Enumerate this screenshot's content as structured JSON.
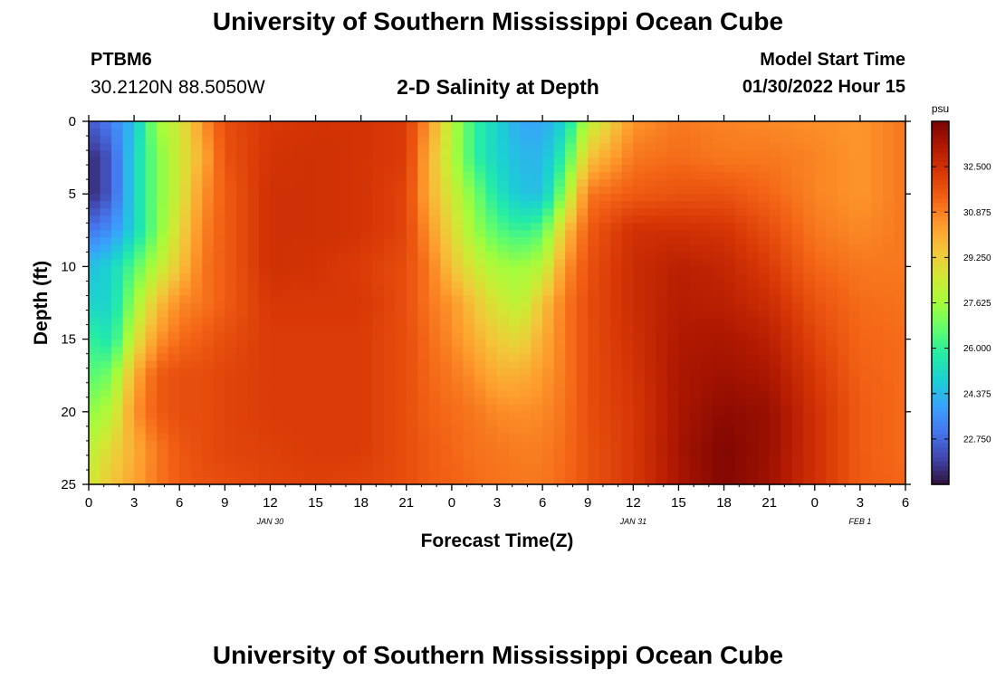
{
  "page": {
    "title_top": "University of Southern Mississippi Ocean Cube",
    "title_bottom": "University of Southern Mississippi Ocean Cube",
    "station_id": "PTBM6",
    "station_coords": "30.2120N  88.5050W",
    "subtitle": "2-D Salinity at Depth",
    "model_start_label": "Model Start Time",
    "model_start_value": "01/30/2022 Hour 15"
  },
  "chart_data": {
    "type": "heatmap",
    "title": "2-D Salinity at Depth",
    "xlabel": "Forecast Time(Z)",
    "ylabel": "Depth (ft)",
    "x_range_hours": [
      0,
      54
    ],
    "y_range_ft": [
      0,
      25
    ],
    "y_inverted": true,
    "x_tick_labels": [
      "0",
      "3",
      "6",
      "9",
      "12",
      "15",
      "18",
      "21",
      "0",
      "3",
      "6",
      "9",
      "12",
      "15",
      "18",
      "21",
      "0",
      "3",
      "6"
    ],
    "y_tick_labels": [
      "0",
      "5",
      "10",
      "15",
      "20",
      "25"
    ],
    "date_labels": [
      {
        "label": "JAN 30",
        "hour": 12
      },
      {
        "label": "JAN 31",
        "hour": 36
      },
      {
        "label": "FEB 1",
        "hour": 51
      }
    ],
    "colorbar": {
      "unit": "psu",
      "min": 21.125,
      "max": 34.125,
      "tick_labels": [
        "32.500",
        "30.875",
        "29.250",
        "27.625",
        "26.000",
        "24.375",
        "22.750"
      ],
      "tick_values": [
        32.5,
        30.875,
        29.25,
        27.625,
        26.0,
        24.375,
        22.75
      ],
      "colormap": [
        "#30123b",
        "#4145ab",
        "#4675ed",
        "#39a2fc",
        "#1bcfd4",
        "#24eca6",
        "#61fc6c",
        "#a4fc3b",
        "#d1e834",
        "#f3c63a",
        "#fe9b2d",
        "#f36315",
        "#d93806",
        "#b11901",
        "#7a0402"
      ]
    },
    "time_hours": [
      0,
      1.5,
      3,
      4.5,
      6,
      7.5,
      9,
      12,
      15,
      18,
      21,
      22.5,
      24,
      25.5,
      27,
      28.5,
      30,
      31.5,
      33,
      36,
      39,
      42,
      45,
      48,
      51,
      54
    ],
    "depth_ft": [
      0,
      2.5,
      5,
      7.5,
      10,
      12.5,
      15,
      17.5,
      20,
      22.5,
      25
    ],
    "salinity_psu": [
      [
        22.5,
        23.2,
        24.5,
        27.5,
        28.5,
        30.5,
        31.8,
        32.3,
        32.4,
        32.4,
        32.2,
        30.5,
        28.0,
        26.0,
        25.0,
        24.0,
        24.0,
        25.0,
        28.0,
        30.5,
        31.0,
        30.8,
        30.7,
        30.6,
        30.5,
        31.0
      ],
      [
        21.5,
        22.5,
        25.0,
        27.0,
        28.5,
        30.0,
        31.7,
        32.4,
        32.5,
        32.4,
        32.2,
        30.0,
        28.0,
        26.0,
        25.0,
        24.4,
        24.3,
        26.0,
        29.5,
        31.0,
        31.2,
        31.0,
        31.0,
        30.8,
        30.5,
        31.0
      ],
      [
        21.5,
        22.5,
        25.0,
        27.0,
        28.5,
        30.5,
        31.5,
        32.5,
        32.5,
        32.4,
        32.0,
        30.0,
        28.5,
        27.0,
        25.5,
        24.6,
        24.5,
        27.5,
        31.0,
        31.5,
        31.7,
        31.7,
        31.3,
        30.8,
        30.5,
        31.0
      ],
      [
        23.0,
        23.5,
        25.0,
        27.0,
        29.0,
        30.8,
        31.5,
        32.5,
        32.5,
        32.4,
        32.0,
        30.5,
        29.0,
        27.5,
        26.5,
        26.0,
        26.5,
        29.5,
        31.5,
        32.5,
        32.5,
        32.4,
        31.8,
        31.0,
        30.7,
        31.0
      ],
      [
        24.5,
        25.0,
        26.5,
        28.0,
        29.5,
        31.0,
        31.5,
        32.5,
        32.4,
        32.2,
        31.8,
        31.0,
        29.5,
        28.5,
        27.7,
        27.5,
        28.0,
        30.5,
        31.7,
        32.6,
        33.0,
        32.8,
        32.2,
        31.3,
        31.0,
        31.0
      ],
      [
        25.0,
        25.0,
        27.5,
        29.5,
        30.7,
        31.0,
        31.5,
        32.3,
        32.3,
        32.3,
        31.8,
        31.0,
        30.5,
        29.5,
        28.6,
        28.0,
        29.5,
        31.0,
        31.8,
        32.6,
        33.1,
        33.0,
        32.6,
        31.7,
        31.2,
        31.1
      ],
      [
        26.0,
        25.5,
        28.5,
        30.5,
        31.2,
        31.5,
        31.8,
        32.2,
        32.2,
        32.2,
        31.8,
        31.2,
        30.7,
        30.0,
        29.3,
        29.0,
        30.0,
        31.0,
        31.8,
        32.5,
        33.2,
        33.3,
        33.0,
        32.0,
        31.3,
        31.2
      ],
      [
        26.5,
        27.0,
        30.0,
        31.5,
        31.8,
        31.8,
        32.0,
        32.2,
        32.2,
        32.2,
        31.8,
        31.3,
        31.0,
        30.6,
        30.0,
        30.0,
        30.4,
        31.0,
        31.8,
        32.4,
        33.3,
        33.5,
        33.3,
        32.3,
        31.4,
        31.2
      ],
      [
        27.3,
        28.0,
        30.5,
        31.5,
        31.8,
        31.8,
        32.0,
        32.2,
        32.2,
        32.2,
        31.8,
        31.4,
        31.2,
        31.0,
        30.7,
        30.6,
        30.7,
        31.1,
        31.8,
        32.3,
        33.3,
        33.8,
        33.6,
        32.5,
        31.5,
        31.2
      ],
      [
        28.0,
        29.0,
        30.0,
        31.0,
        31.6,
        31.8,
        32.0,
        32.1,
        32.2,
        32.2,
        31.8,
        31.5,
        31.3,
        31.1,
        31.0,
        30.9,
        30.9,
        31.2,
        31.7,
        32.3,
        33.4,
        34.0,
        33.6,
        32.5,
        31.5,
        31.2
      ],
      [
        28.5,
        29.5,
        30.2,
        31.0,
        31.5,
        31.7,
        31.8,
        32.0,
        32.1,
        32.0,
        31.8,
        31.5,
        31.4,
        31.2,
        31.1,
        31.0,
        31.0,
        31.3,
        31.7,
        32.3,
        33.3,
        34.0,
        33.5,
        32.5,
        31.5,
        31.3
      ]
    ]
  }
}
